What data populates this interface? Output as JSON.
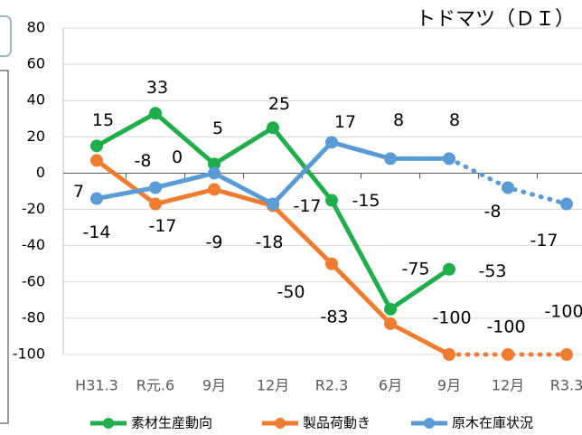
{
  "chart_data": {
    "type": "line",
    "title": "トドマツ（ＤＩ）",
    "categories": [
      "H31.3",
      "R元.6",
      "9月",
      "12月",
      "R2.3",
      "6月",
      "9月",
      "12月",
      "R3.3"
    ],
    "series": [
      {
        "name": "素材生産動向",
        "color": "#1fae4b",
        "values": [
          15,
          33,
          5,
          25,
          -15,
          -75,
          -53,
          null,
          null
        ],
        "dashed_from": 6
      },
      {
        "name": "製品荷動き",
        "color": "#ef7d31",
        "values": [
          7,
          -17,
          -9,
          -18,
          -50,
          -83,
          -100,
          -100,
          -100
        ],
        "dashed_from": 6
      },
      {
        "name": "原木在庫状況",
        "color": "#5b9bd5",
        "values": [
          -14,
          -8,
          0,
          -17,
          17,
          8,
          8,
          -8,
          -17
        ],
        "dashed_from": 6
      }
    ],
    "ylim": [
      -100,
      80
    ],
    "yticks": [
      80,
      60,
      40,
      20,
      0,
      -20,
      -40,
      -60,
      -80,
      -100
    ],
    "grid": true,
    "legend": "bottom"
  }
}
